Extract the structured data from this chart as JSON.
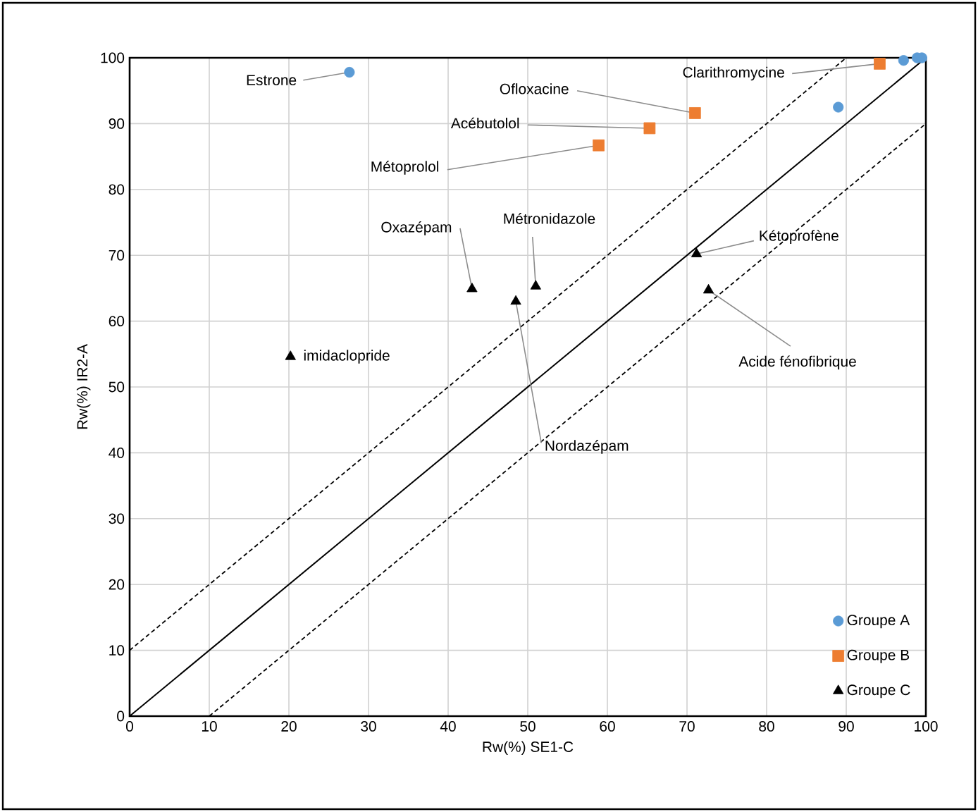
{
  "chart_data": {
    "type": "scatter",
    "xlabel": "Rw(%)    SE1-C",
    "ylabel": "Rw(%)    IR2-A",
    "xlim": [
      0,
      100
    ],
    "ylim": [
      0,
      100
    ],
    "xticks": [
      0,
      10,
      20,
      30,
      40,
      50,
      60,
      70,
      80,
      90,
      100
    ],
    "yticks": [
      0,
      10,
      20,
      30,
      40,
      50,
      60,
      70,
      80,
      90,
      100
    ],
    "grid": true,
    "legend": "bottom right",
    "series": [
      {
        "name": "Groupe A",
        "marker": "circle",
        "color": "#5b9bd5",
        "x": [
          27.6,
          89.0,
          97.2,
          98.9,
          99.5
        ],
        "values": [
          97.8,
          92.5,
          99.6,
          100,
          100
        ]
      },
      {
        "name": "Groupe B",
        "marker": "square",
        "color": "#ed7d31",
        "x": [
          94.2,
          71.0,
          65.3,
          58.9
        ],
        "values": [
          99.1,
          91.6,
          89.3,
          86.7
        ]
      },
      {
        "name": "Groupe C",
        "marker": "triangle",
        "color": "#000000",
        "x": [
          43.0,
          51.0,
          48.5,
          20.2,
          71.2,
          72.7
        ],
        "values": [
          64.9,
          65.3,
          63.0,
          54.6,
          70.2,
          64.7
        ]
      },
      {
        "type": "line",
        "line_style": "solid",
        "color": "#000000",
        "x": [
          0,
          100
        ],
        "values": [
          0,
          100
        ]
      },
      {
        "type": "line",
        "line_style": "dashed",
        "color": "#000000",
        "x": [
          0,
          90
        ],
        "values": [
          10,
          100
        ]
      },
      {
        "type": "line",
        "line_style": "dashed",
        "color": "#000000",
        "x": [
          10,
          100
        ],
        "values": [
          0,
          90
        ]
      }
    ],
    "annotations": [
      {
        "text": "Estrone",
        "x": 27.6,
        "y": 97.8
      },
      {
        "text": "Clarithromycine",
        "x": 94.2,
        "y": 99.1
      },
      {
        "text": "Ofloxacine",
        "x": 71.0,
        "y": 91.6
      },
      {
        "text": "Acébutolol",
        "x": 65.3,
        "y": 89.3
      },
      {
        "text": "Métoprolol",
        "x": 58.9,
        "y": 86.7
      },
      {
        "text": "Oxazépam",
        "x": 43.0,
        "y": 64.9
      },
      {
        "text": "Métronidazole",
        "x": 51.0,
        "y": 65.3
      },
      {
        "text": "Nordazépam",
        "x": 48.5,
        "y": 63.0
      },
      {
        "text": "imidaclopride",
        "x": 20.2,
        "y": 54.6
      },
      {
        "text": "Kétoprofène",
        "x": 71.2,
        "y": 70.2
      },
      {
        "text": "Acide fénofibrique",
        "x": 72.7,
        "y": 64.7
      }
    ]
  }
}
